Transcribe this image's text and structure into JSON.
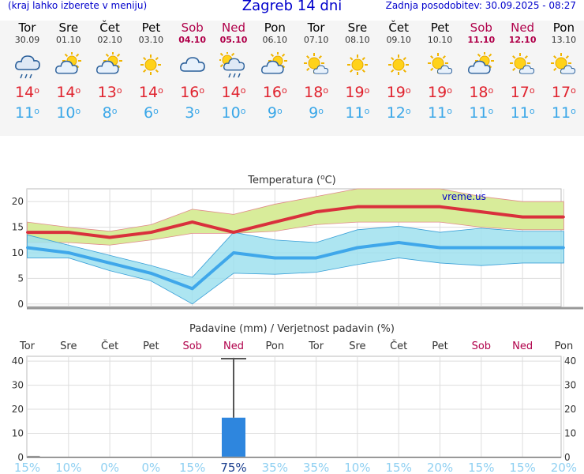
{
  "header": {
    "location_hint": "(kraj lahko izberete v meniju)",
    "title": "Zagreb 14 dni",
    "last_update": "Zadnja posodobitev: 30.09.2025 - 08:27"
  },
  "degree_symbol": "o",
  "days": [
    {
      "name": "Tor",
      "date": "30.09",
      "weekend": false,
      "icon": "cloud-rain-icon",
      "max": "14",
      "min": "11"
    },
    {
      "name": "Sre",
      "date": "01.10",
      "weekend": false,
      "icon": "cloud-sun-icon",
      "max": "14",
      "min": "10"
    },
    {
      "name": "Čet",
      "date": "02.10",
      "weekend": false,
      "icon": "cloud-sun-icon",
      "max": "13",
      "min": "8"
    },
    {
      "name": "Pet",
      "date": "03.10",
      "weekend": false,
      "icon": "sun-icon",
      "max": "14",
      "min": "6"
    },
    {
      "name": "Sob",
      "date": "04.10",
      "weekend": true,
      "icon": "cloud-icon",
      "max": "16",
      "min": "3"
    },
    {
      "name": "Ned",
      "date": "05.10",
      "weekend": true,
      "icon": "sun-cloud-rain-icon",
      "max": "14",
      "min": "10"
    },
    {
      "name": "Pon",
      "date": "06.10",
      "weekend": false,
      "icon": "cloud-sun-icon",
      "max": "16",
      "min": "9"
    },
    {
      "name": "Tor",
      "date": "07.10",
      "weekend": false,
      "icon": "sun-small-cloud-icon",
      "max": "18",
      "min": "9"
    },
    {
      "name": "Sre",
      "date": "08.10",
      "weekend": false,
      "icon": "sun-icon",
      "max": "19",
      "min": "11"
    },
    {
      "name": "Čet",
      "date": "09.10",
      "weekend": false,
      "icon": "sun-icon",
      "max": "19",
      "min": "12"
    },
    {
      "name": "Pet",
      "date": "10.10",
      "weekend": false,
      "icon": "sun-small-cloud-icon",
      "max": "19",
      "min": "11"
    },
    {
      "name": "Sob",
      "date": "11.10",
      "weekend": true,
      "icon": "cloud-sun-icon",
      "max": "18",
      "min": "11"
    },
    {
      "name": "Ned",
      "date": "12.10",
      "weekend": true,
      "icon": "sun-small-cloud-icon",
      "max": "17",
      "min": "11"
    },
    {
      "name": "Pon",
      "date": "13.10",
      "weekend": false,
      "icon": "sun-small-cloud-icon",
      "max": "17",
      "min": "11"
    }
  ],
  "colors": {
    "max": "#d9303c",
    "min": "#3fa7ea",
    "weekend": "#b0004a",
    "max_band": "#d8ec9a",
    "min_band": "#9fe0ef",
    "precip_bar": "#2e86de",
    "prob_low": "#8fd0f2",
    "prob_high": "#1b3f8f",
    "grid": "#cccccc"
  },
  "chart_data": [
    {
      "type": "line",
      "title": "Temperatura (oC)",
      "title_prefix": "Temperatura (",
      "title_sup": "o",
      "title_suffix": "C)",
      "watermark": "vreme.us",
      "x": [
        "30.09",
        "01.10",
        "02.10",
        "03.10",
        "04.10",
        "05.10",
        "06.10",
        "07.10",
        "08.10",
        "09.10",
        "10.10",
        "11.10",
        "12.10",
        "13.10"
      ],
      "yticks": [
        "20",
        "15",
        "10",
        "5",
        "0"
      ],
      "ylim": [
        -0.5,
        22.5
      ],
      "grid": true,
      "series": [
        {
          "role": "max",
          "values": [
            14,
            14,
            13,
            14,
            16,
            14,
            16,
            18,
            19,
            19,
            19,
            18,
            17,
            17
          ],
          "band_high": [
            16,
            15,
            14.2,
            15.5,
            18.5,
            17.5,
            19.5,
            21,
            22.5,
            22.5,
            22.5,
            21,
            20,
            20
          ],
          "band_low": [
            12,
            12,
            11.5,
            12.5,
            13.8,
            13.8,
            14.2,
            15.5,
            16,
            16,
            16,
            15,
            14.5,
            14.5
          ]
        },
        {
          "role": "min",
          "values": [
            11,
            10,
            8,
            6,
            3,
            10,
            9,
            9,
            11,
            12,
            11,
            11,
            11,
            11
          ],
          "band_high": [
            13.5,
            11.5,
            9.5,
            7.5,
            5.2,
            14,
            12.5,
            12,
            14.5,
            15.2,
            14,
            14.8,
            14.2,
            14.2
          ],
          "band_low": [
            9,
            9,
            6.5,
            4.5,
            0,
            6,
            5.8,
            6.2,
            7.7,
            9,
            8,
            7.5,
            8,
            8
          ]
        }
      ]
    },
    {
      "type": "bar",
      "title": "Padavine (mm) / Verjetnost padavin (%)",
      "categories": [
        "Tor",
        "Sre",
        "Čet",
        "Pet",
        "Sob",
        "Ned",
        "Pon",
        "Tor",
        "Sre",
        "Čet",
        "Pet",
        "Sob",
        "Ned",
        "Pon"
      ],
      "weekend": [
        false,
        false,
        false,
        false,
        true,
        true,
        false,
        false,
        false,
        false,
        false,
        true,
        true,
        false
      ],
      "values": [
        0.5,
        0,
        0,
        0,
        0,
        16.5,
        0,
        0,
        0,
        0,
        0,
        0,
        0,
        0
      ],
      "error_high": [
        0,
        0,
        0,
        0,
        0,
        41,
        0,
        0,
        0,
        0,
        0,
        0,
        0,
        0
      ],
      "probability": [
        "15%",
        "10%",
        "0%",
        "0%",
        "15%",
        "75%",
        "35%",
        "35%",
        "10%",
        "15%",
        "20%",
        "15%",
        "15%",
        "20%"
      ],
      "yticks": [
        "40",
        "30",
        "20",
        "10",
        "0"
      ],
      "ylim": [
        0,
        42
      ],
      "grid": true
    }
  ]
}
